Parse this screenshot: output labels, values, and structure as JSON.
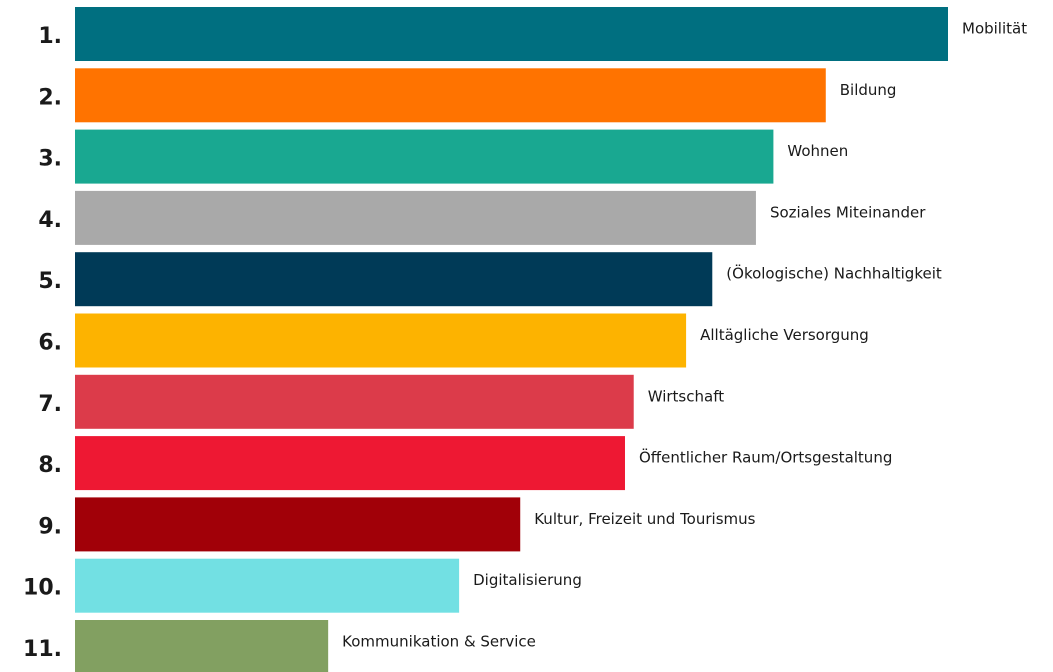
{
  "chart_data": {
    "type": "bar",
    "orientation": "horizontal",
    "ranks": [
      "1.",
      "2.",
      "3.",
      "4.",
      "5.",
      "6.",
      "7.",
      "8.",
      "9.",
      "10.",
      "11."
    ],
    "categories": [
      "Mobilität",
      "Bildung",
      "Wohnen",
      "Soziales Miteinander",
      "(Ökologische) Nachhaltigkeit",
      "Alltägliche Versorgung",
      "Wirtschaft",
      "Öffentlicher Raum/Ortsgestaltung",
      "Kultur, Freizeit und Tourismus",
      "Digitalisierung",
      "Kommunikation & Service"
    ],
    "values": [
      100,
      86,
      80,
      78,
      73,
      70,
      64,
      63,
      51,
      44,
      29
    ],
    "colors": [
      "#006f80",
      "#ff7300",
      "#19a891",
      "#a9a9a9",
      "#003a57",
      "#fdb300",
      "#dc3b4a",
      "#ee1833",
      "#a10008",
      "#72e0e3",
      "#82a061"
    ],
    "xlim": [
      0,
      100
    ]
  }
}
